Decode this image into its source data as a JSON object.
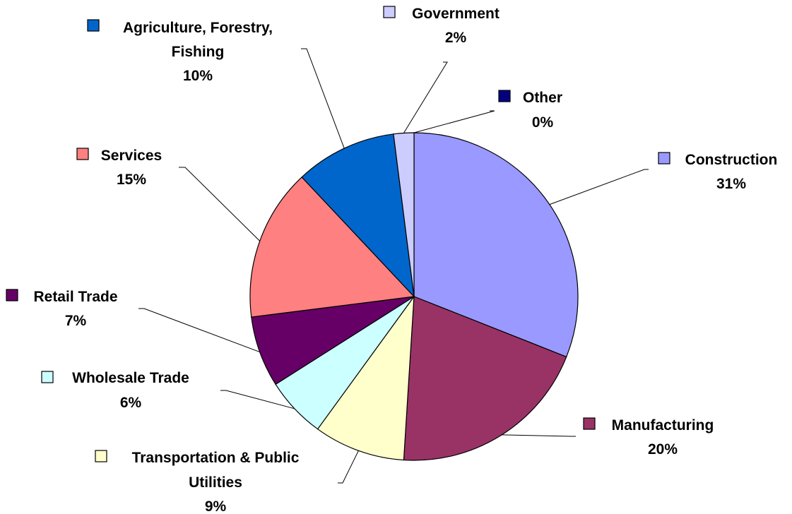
{
  "chart_data": {
    "type": "pie",
    "slices": [
      {
        "label": "Construction",
        "value": 31,
        "percent_label": "31%",
        "color": "#9999FF"
      },
      {
        "label": "Manufacturing",
        "value": 20,
        "percent_label": "20%",
        "color": "#993366"
      },
      {
        "label": "Transportation & Public Utilities",
        "value": 9,
        "percent_label": "9%",
        "color": "#FFFFCC"
      },
      {
        "label": "Wholesale Trade",
        "value": 6,
        "percent_label": "6%",
        "color": "#CCFFFF"
      },
      {
        "label": "Retail Trade",
        "value": 7,
        "percent_label": "7%",
        "color": "#660066"
      },
      {
        "label": "Services",
        "value": 15,
        "percent_label": "15%",
        "color": "#FF8080"
      },
      {
        "label": "Agriculture, Forestry, Fishing",
        "value": 10,
        "percent_label": "10%",
        "color": "#0066CC"
      },
      {
        "label": "Government",
        "value": 2,
        "percent_label": "2%",
        "color": "#CCCCFF"
      },
      {
        "label": "Other",
        "value": 0,
        "percent_label": "0%",
        "color": "#000080"
      }
    ],
    "legend": "none",
    "data_labels": "outside with leader lines and color keys"
  }
}
